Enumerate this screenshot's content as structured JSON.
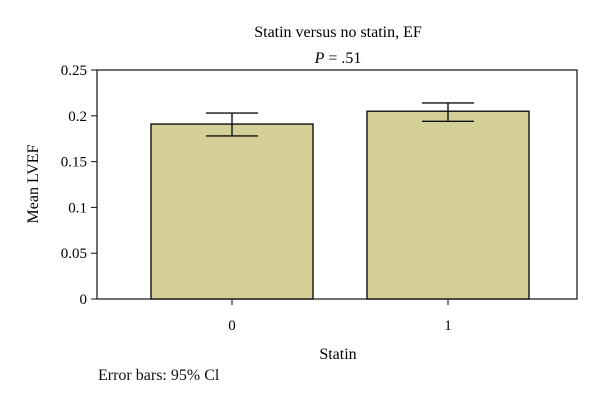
{
  "chart_data": {
    "type": "bar",
    "title": "Statin versus no statin, EF",
    "subtitle": "P = .51",
    "subtitle_parts": {
      "italic": "P",
      "rest": " = .51"
    },
    "xlabel": "Statin",
    "ylabel": "Mean LVEF",
    "categories": [
      "0",
      "1"
    ],
    "values": [
      0.191,
      0.205
    ],
    "error_bars": {
      "lower": [
        0.178,
        0.194
      ],
      "upper": [
        0.203,
        0.214
      ]
    },
    "ylim": [
      0,
      0.25
    ],
    "yticks": [
      0,
      0.05,
      0.1,
      0.15,
      0.2,
      0.25
    ],
    "ytick_labels": [
      "0",
      "0.05",
      "0.1",
      "0.15",
      "0.2",
      "0.25"
    ],
    "grid": false,
    "bar_color": "#d4cf96",
    "bar_edge_color": "#111111",
    "footnote": "Error bars: 95% Cl"
  }
}
